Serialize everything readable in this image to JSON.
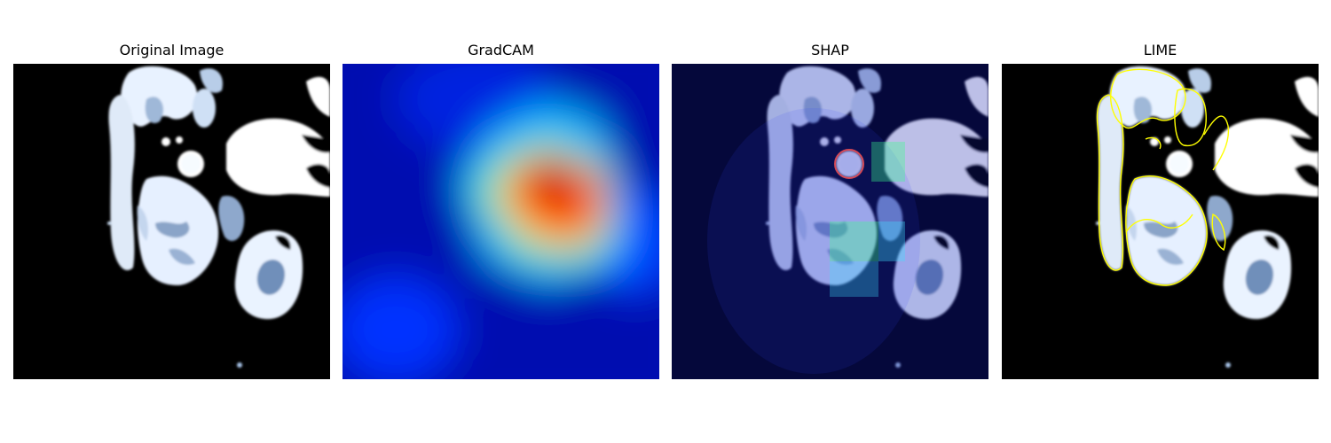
{
  "panels": [
    {
      "id": "original",
      "title": "Original Image"
    },
    {
      "id": "gradcam",
      "title": "GradCAM"
    },
    {
      "id": "shap",
      "title": "SHAP"
    },
    {
      "id": "lime",
      "title": "LIME"
    }
  ],
  "colors": {
    "background": "#ffffff",
    "tissue": "#e8f2ff",
    "lime_outline": "#ffff00",
    "shap_positive": "#3cff8c",
    "shap_negative": "#ff5050",
    "gradcam_hot": "#8b0000",
    "gradcam_cold": "#00008b"
  }
}
